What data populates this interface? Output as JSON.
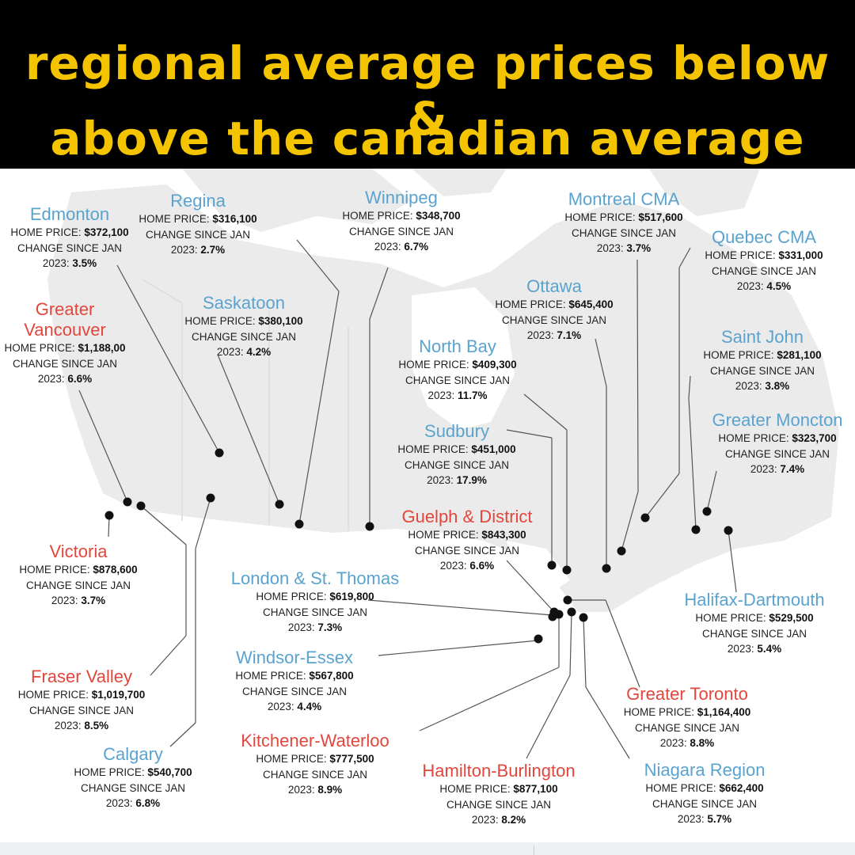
{
  "title": {
    "line1": "regional average prices below &",
    "line2": "above the canadian average"
  },
  "labels": {
    "home_price": "HOME PRICE:",
    "change": "CHANGE SINCE JAN",
    "year": "2023:"
  },
  "colors": {
    "banner_bg": "#000000",
    "title_text": "#f5c400",
    "below_average": "#5aa3cf",
    "above_average": "#e2463c"
  },
  "regions": [
    {
      "id": "edmonton",
      "name": "Edmonton",
      "color": "blue",
      "price": "$372,100",
      "change": "3.5%"
    },
    {
      "id": "regina",
      "name": "Regina",
      "color": "blue",
      "price": "$316,100",
      "change": "2.7%"
    },
    {
      "id": "winnipeg",
      "name": "Winnipeg",
      "color": "blue",
      "price": "$348,700",
      "change": "6.7%"
    },
    {
      "id": "montreal",
      "name": "Montreal CMA",
      "color": "blue",
      "price": "$517,600",
      "change": "3.7%"
    },
    {
      "id": "quebec",
      "name": "Quebec CMA",
      "color": "blue",
      "price": "$331,000",
      "change": "4.5%"
    },
    {
      "id": "vancouver",
      "name": "Greater\nVancouver",
      "color": "red",
      "price": "$1,188,00",
      "change": "6.6%"
    },
    {
      "id": "saskatoon",
      "name": "Saskatoon",
      "color": "blue",
      "price": "$380,100",
      "change": "4.2%"
    },
    {
      "id": "ottawa",
      "name": "Ottawa",
      "color": "blue",
      "price": "$645,400",
      "change": "7.1%"
    },
    {
      "id": "northbay",
      "name": "North Bay",
      "color": "blue",
      "price": "$409,300",
      "change": "11.7%"
    },
    {
      "id": "saintjohn",
      "name": "Saint John",
      "color": "blue",
      "price": "$281,100",
      "change": "3.8%"
    },
    {
      "id": "moncton",
      "name": "Greater Moncton",
      "color": "blue",
      "price": "$323,700",
      "change": "7.4%"
    },
    {
      "id": "sudbury",
      "name": "Sudbury",
      "color": "blue",
      "price": "$451,000",
      "change": "17.9%"
    },
    {
      "id": "guelph",
      "name": "Guelph & District",
      "color": "red",
      "price": "$843,300",
      "change": "6.6%"
    },
    {
      "id": "victoria",
      "name": "Victoria",
      "color": "red",
      "price": "$878,600",
      "change": "3.7%"
    },
    {
      "id": "london",
      "name": "London & St. Thomas",
      "color": "blue",
      "price": "$619,800",
      "change": "7.3%"
    },
    {
      "id": "halifax",
      "name": "Halifax-Dartmouth",
      "color": "blue",
      "price": "$529,500",
      "change": "5.4%"
    },
    {
      "id": "windsor",
      "name": "Windsor-Essex",
      "color": "blue",
      "price": "$567,800",
      "change": "4.4%"
    },
    {
      "id": "fraser",
      "name": "Fraser Valley",
      "color": "red",
      "price": "$1,019,700",
      "change": "8.5%"
    },
    {
      "id": "toronto",
      "name": "Greater Toronto",
      "color": "red",
      "price": "$1,164,400",
      "change": "8.8%"
    },
    {
      "id": "calgary",
      "name": "Calgary",
      "color": "blue",
      "price": "$540,700",
      "change": "6.8%"
    },
    {
      "id": "kitchener",
      "name": "Kitchener-Waterloo",
      "color": "red",
      "price": "$777,500",
      "change": "8.9%"
    },
    {
      "id": "hamilton",
      "name": "Hamilton-Burlington",
      "color": "red",
      "price": "$877,100",
      "change": "8.2%"
    },
    {
      "id": "niagara",
      "name": "Niagara Region",
      "color": "blue",
      "price": "$662,400",
      "change": "5.7%"
    }
  ]
}
